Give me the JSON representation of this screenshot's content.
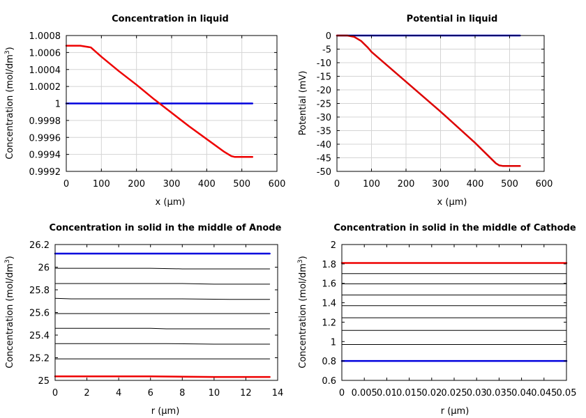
{
  "chart_data": [
    {
      "type": "line",
      "title": "Concentration in liquid",
      "xlabel": "x (µm)",
      "ylabel_html": "Concentration (mol/dm<tspan baseline-shift=\"super\" font-size=\"9\">3</tspan>)",
      "ylabel": "Concentration (mol/dm3)",
      "xlim": [
        0,
        600
      ],
      "ylim": [
        0.9992,
        1.0008
      ],
      "xticks": [
        "0",
        "100",
        "200",
        "300",
        "400",
        "500",
        "600"
      ],
      "yticks": [
        "0.9992",
        "0.9994",
        "0.9996",
        "0.9998",
        "1",
        "1.0002",
        "1.0004",
        "1.0006",
        "1.0008"
      ],
      "xtick_values": [
        0,
        100,
        200,
        300,
        400,
        500,
        600
      ],
      "ytick_values": [
        0.9992,
        0.9994,
        0.9996,
        0.9998,
        1.0,
        1.0002,
        1.0004,
        1.0006,
        1.0008
      ],
      "grid": true,
      "series": [
        {
          "color": "#0000dd",
          "width": 2.5,
          "x": [
            0,
            100,
            200,
            300,
            400,
            530
          ],
          "y": [
            1.0,
            1.0,
            1.0,
            1.0,
            1.0,
            1.0
          ]
        },
        {
          "color": "#ee0000",
          "width": 2.5,
          "x": [
            0,
            40,
            70,
            100,
            150,
            200,
            250,
            300,
            350,
            400,
            450,
            470,
            480,
            500,
            530
          ],
          "y": [
            1.00068,
            1.00068,
            1.00066,
            1.00055,
            1.00038,
            1.00022,
            1.00005,
            0.99989,
            0.99973,
            0.99958,
            0.99943,
            0.99938,
            0.99937,
            0.99937,
            0.99937
          ]
        }
      ]
    },
    {
      "type": "line",
      "title": "Potential in liquid",
      "xlabel": "x (µm)",
      "ylabel": "Potential (mV)",
      "xlim": [
        0,
        600
      ],
      "ylim": [
        -50,
        0
      ],
      "xticks": [
        "0",
        "100",
        "200",
        "300",
        "400",
        "500",
        "600"
      ],
      "yticks": [
        "-50",
        "-45",
        "-40",
        "-35",
        "-30",
        "-25",
        "-20",
        "-15",
        "-10",
        "-5",
        "0"
      ],
      "xtick_values": [
        0,
        100,
        200,
        300,
        400,
        500,
        600
      ],
      "ytick_values": [
        -50,
        -45,
        -40,
        -35,
        -30,
        -25,
        -20,
        -15,
        -10,
        -5,
        0
      ],
      "grid": true,
      "series": [
        {
          "color": "#0000dd",
          "width": 2.5,
          "x": [
            0,
            100,
            200,
            300,
            400,
            530
          ],
          "y": [
            0,
            0,
            0,
            0,
            0,
            0
          ]
        },
        {
          "color": "#dd0000",
          "width": 2.5,
          "x": [
            0,
            30,
            50,
            70,
            90,
            100,
            200,
            300,
            400,
            460,
            470,
            480,
            500,
            530
          ],
          "y": [
            0,
            0,
            -0.5,
            -2,
            -4.5,
            -6,
            -17,
            -28,
            -39.5,
            -47,
            -47.8,
            -48,
            -48,
            -48
          ]
        }
      ]
    },
    {
      "type": "line",
      "title": "Concentration in solid in the middle of Anode",
      "xlabel": "r (µm)",
      "ylabel": "Concentration (mol/dm3)",
      "xlim": [
        0,
        14
      ],
      "ylim": [
        25,
        26.2
      ],
      "xticks": [
        "0",
        "2",
        "4",
        "6",
        "8",
        "10",
        "12",
        "14"
      ],
      "yticks": [
        "25",
        "25.2",
        "25.4",
        "25.6",
        "25.8",
        "26",
        "26.2"
      ],
      "xtick_values": [
        0,
        2,
        4,
        6,
        8,
        10,
        12,
        14
      ],
      "ytick_values": [
        25,
        25.2,
        25.4,
        25.6,
        25.8,
        26,
        26.2
      ],
      "grid": false,
      "series": [
        {
          "color": "#0000dd",
          "width": 2.5,
          "x": [
            0,
            13.5
          ],
          "y": [
            26.12,
            26.12
          ]
        },
        {
          "color": "#000000",
          "width": 1,
          "x": [
            0,
            4,
            6,
            8,
            10,
            13.5
          ],
          "y": [
            25.99,
            25.99,
            25.99,
            25.985,
            25.985,
            25.985
          ]
        },
        {
          "color": "#000000",
          "width": 1,
          "x": [
            0,
            4,
            6,
            8,
            10,
            13.5
          ],
          "y": [
            25.855,
            25.855,
            25.855,
            25.855,
            25.85,
            25.85
          ]
        },
        {
          "color": "#000000",
          "width": 1,
          "x": [
            0,
            1,
            4,
            8,
            11,
            13.5
          ],
          "y": [
            25.725,
            25.72,
            25.72,
            25.72,
            25.715,
            25.715
          ]
        },
        {
          "color": "#000000",
          "width": 1,
          "x": [
            0,
            4,
            8,
            13.5
          ],
          "y": [
            25.59,
            25.59,
            25.59,
            25.59
          ]
        },
        {
          "color": "#000000",
          "width": 1,
          "x": [
            0,
            6,
            7,
            10,
            13.5
          ],
          "y": [
            25.46,
            25.46,
            25.455,
            25.455,
            25.455
          ]
        },
        {
          "color": "#000000",
          "width": 1,
          "x": [
            0,
            4,
            7,
            10,
            13.5
          ],
          "y": [
            25.325,
            25.325,
            25.325,
            25.32,
            25.32
          ]
        },
        {
          "color": "#000000",
          "width": 1,
          "x": [
            0,
            4,
            8,
            13.5
          ],
          "y": [
            25.19,
            25.19,
            25.19,
            25.19
          ]
        },
        {
          "color": "#ee0000",
          "width": 2.5,
          "x": [
            0,
            6,
            10,
            13.5
          ],
          "y": [
            25.035,
            25.035,
            25.03,
            25.03
          ]
        }
      ]
    },
    {
      "type": "line",
      "title": "Concentration in solid in the middle of Cathode",
      "xlabel": "r (µm)",
      "ylabel": "Concentration (mol/dm3)",
      "xlim": [
        0,
        0.05
      ],
      "ylim": [
        0.6,
        2
      ],
      "xticks": [
        "0",
        "0.005",
        "0.01",
        "0.015",
        "0.02",
        "0.025",
        "0.03",
        "0.035",
        "0.04",
        "0.045",
        "0.05"
      ],
      "yticks": [
        "0.6",
        "0.8",
        "1",
        "1.2",
        "1.4",
        "1.6",
        "1.8",
        "2"
      ],
      "xtick_values": [
        0,
        0.005,
        0.01,
        0.015,
        0.02,
        0.025,
        0.03,
        0.035,
        0.04,
        0.045,
        0.05
      ],
      "ytick_values": [
        0.6,
        0.8,
        1.0,
        1.2,
        1.4,
        1.6,
        1.8,
        2.0
      ],
      "grid": false,
      "series": [
        {
          "color": "#ee0000",
          "width": 2.5,
          "x": [
            0,
            0.05
          ],
          "y": [
            1.81,
            1.81
          ]
        },
        {
          "color": "#000000",
          "width": 1,
          "x": [
            0,
            0.05
          ],
          "y": [
            1.7,
            1.7
          ]
        },
        {
          "color": "#000000",
          "width": 1,
          "x": [
            0,
            0.05
          ],
          "y": [
            1.595,
            1.595
          ]
        },
        {
          "color": "#000000",
          "width": 1,
          "x": [
            0,
            0.05
          ],
          "y": [
            1.48,
            1.48
          ]
        },
        {
          "color": "#000000",
          "width": 1,
          "x": [
            0,
            0.05
          ],
          "y": [
            1.37,
            1.37
          ]
        },
        {
          "color": "#000000",
          "width": 1,
          "x": [
            0,
            0.05
          ],
          "y": [
            1.245,
            1.245
          ]
        },
        {
          "color": "#000000",
          "width": 1,
          "x": [
            0,
            0.05
          ],
          "y": [
            1.115,
            1.115
          ]
        },
        {
          "color": "#000000",
          "width": 1,
          "x": [
            0,
            0.05
          ],
          "y": [
            0.97,
            0.97
          ]
        },
        {
          "color": "#0000dd",
          "width": 2.5,
          "x": [
            0,
            0.05
          ],
          "y": [
            0.8,
            0.8
          ]
        }
      ]
    }
  ]
}
